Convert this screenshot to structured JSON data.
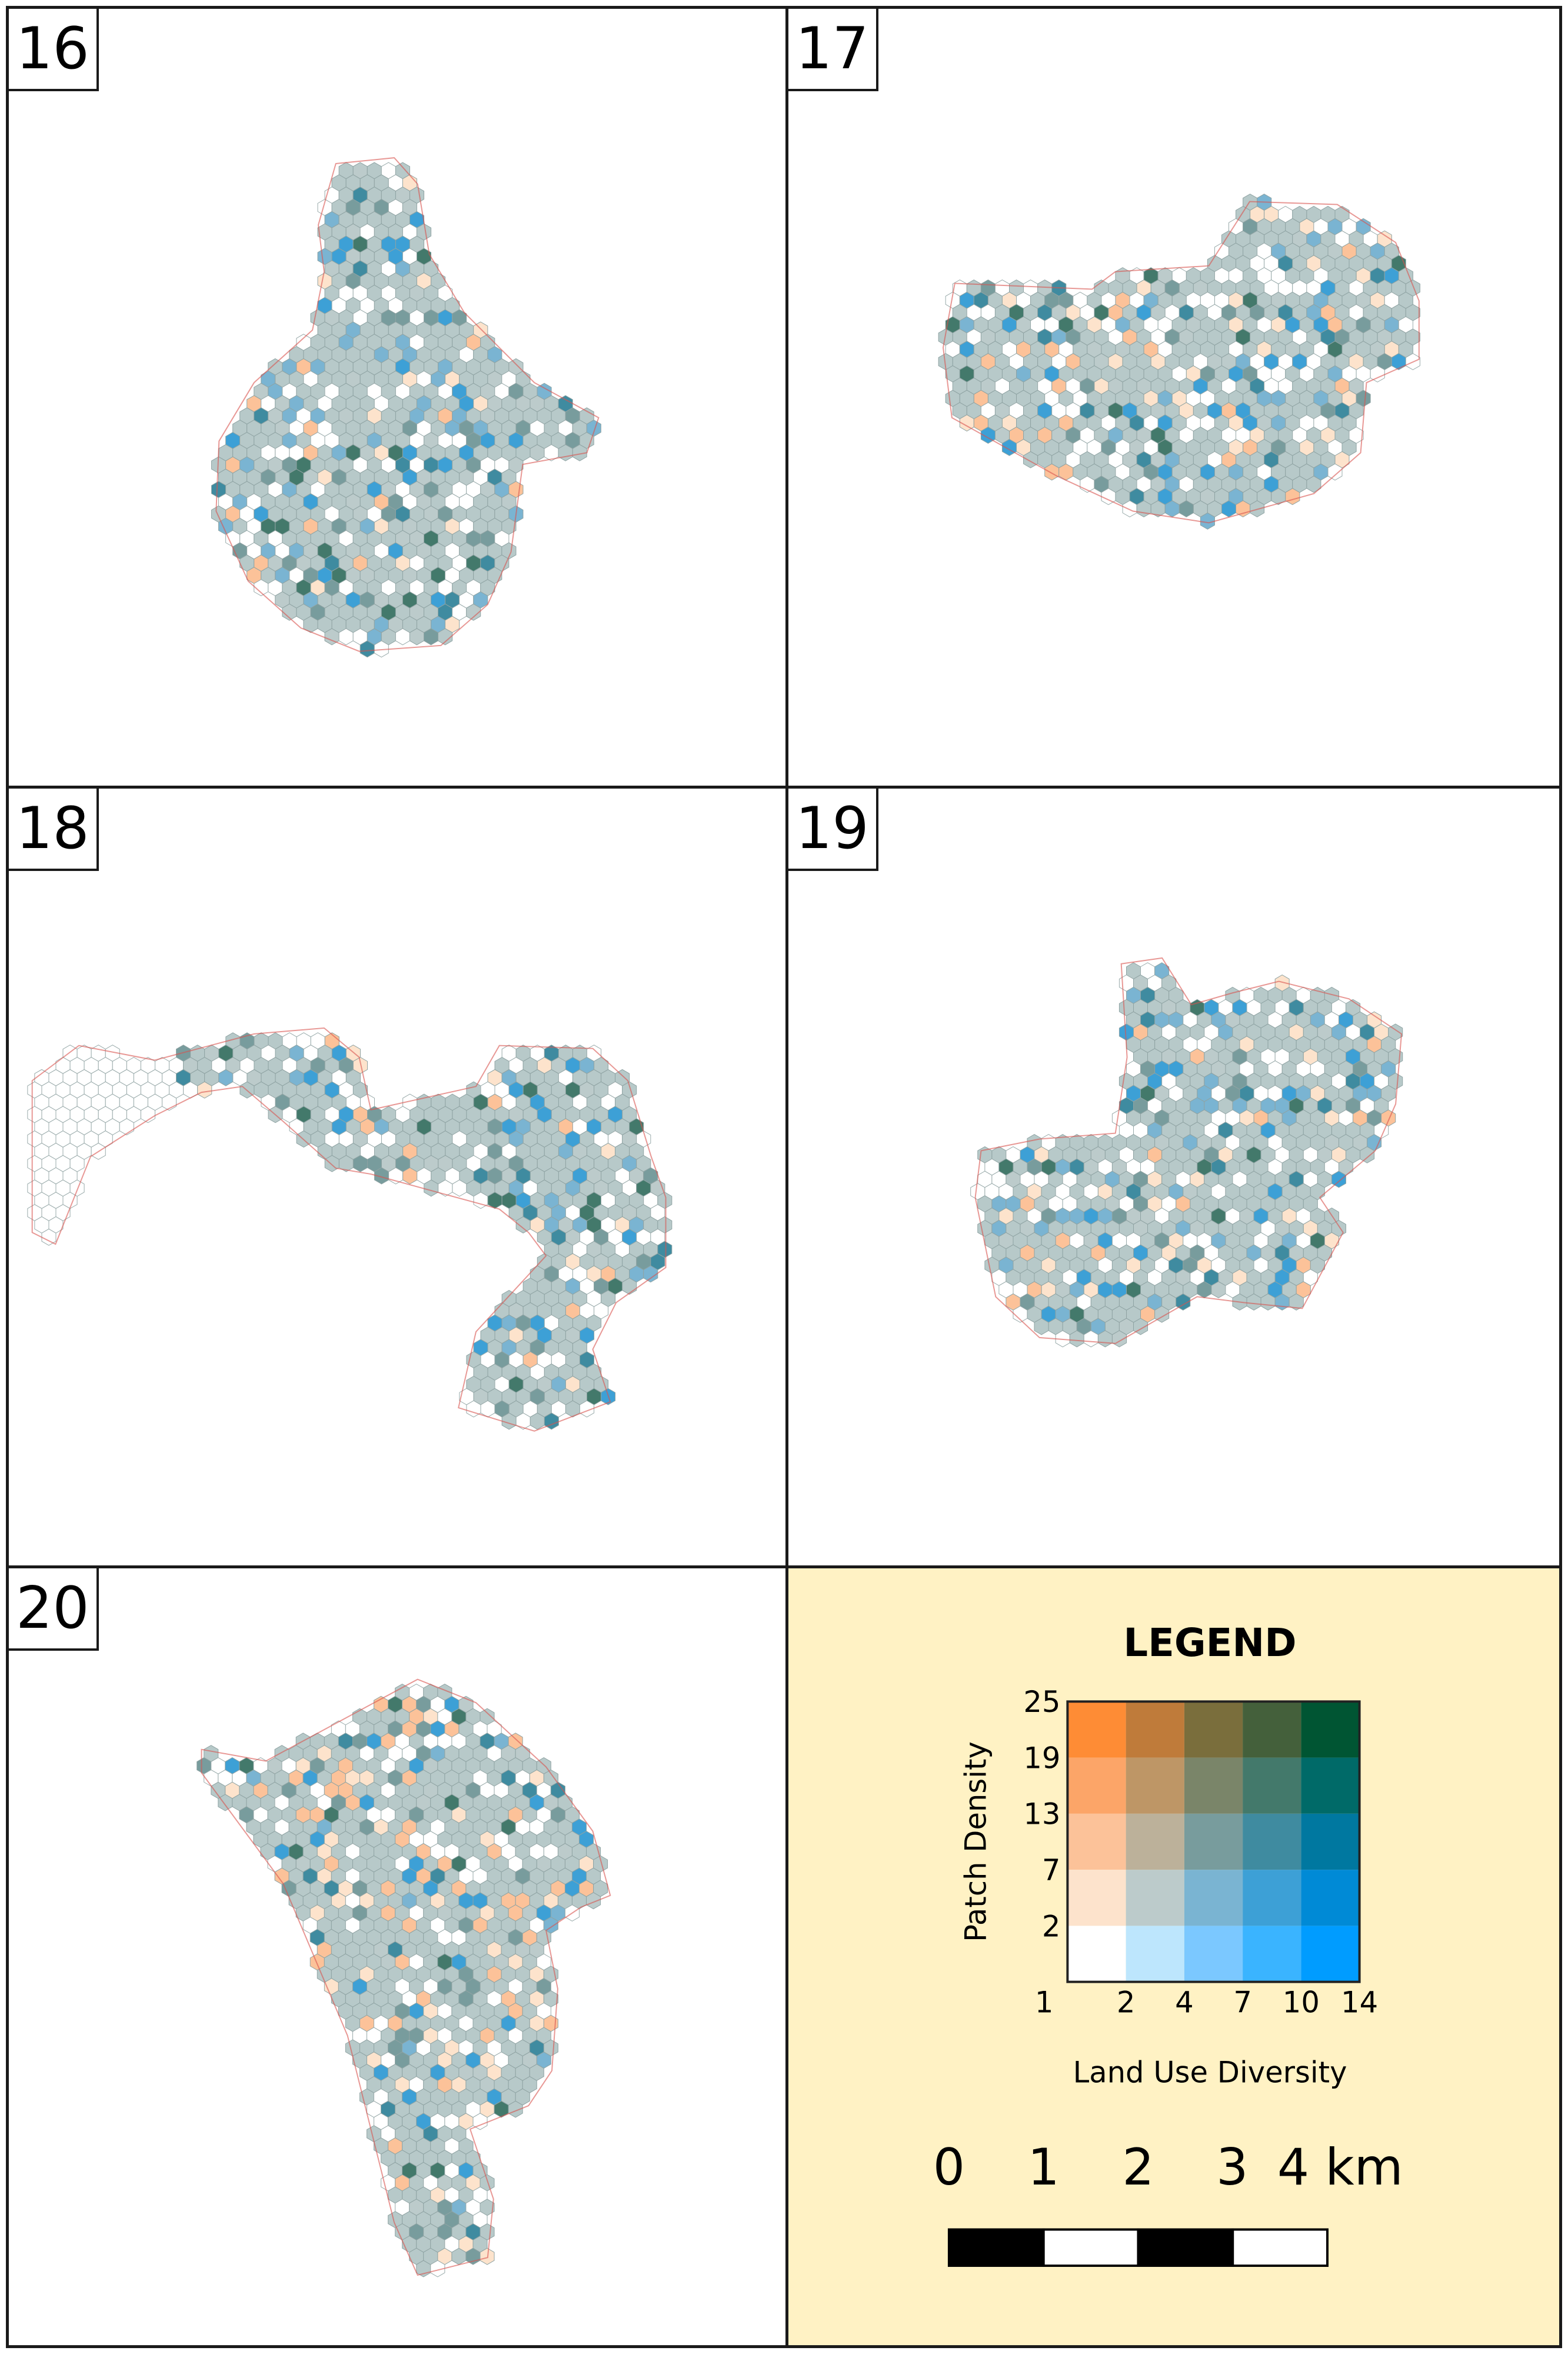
{
  "panels": [
    {
      "label": "16"
    },
    {
      "label": "17"
    },
    {
      "label": "18"
    },
    {
      "label": "19"
    },
    {
      "label": "20"
    }
  ],
  "legend": {
    "title": "LEGEND",
    "y_axis_label": "Patch Density",
    "x_axis_label": "Land Use Diversity",
    "y_ticks": [
      "25",
      "19",
      "13",
      "7",
      "2"
    ],
    "x_ticks": [
      "1",
      "2",
      "4",
      "7",
      "10",
      "14"
    ],
    "grid_colors_top_to_bottom": [
      [
        "#fe8c35",
        "#bf7b3a",
        "#7a6e3c",
        "#44603b",
        "#005533"
      ],
      [
        "#fca568",
        "#be9666",
        "#7a8569",
        "#43796b",
        "#006a68"
      ],
      [
        "#fcc299",
        "#bcb19a",
        "#789c9d",
        "#3f8ba0",
        "#0078a0"
      ],
      [
        "#fde3cc",
        "#bccbcb",
        "#7ab4d2",
        "#3da0d6",
        "#008ad6"
      ],
      [
        "#ffffff",
        "#bde6fd",
        "#7bc8ff",
        "#3ab4ff",
        "#009cff"
      ]
    ]
  },
  "scale_bar": {
    "labels": [
      "0",
      "1",
      "2",
      "3",
      "4 km"
    ],
    "segments": [
      "black",
      "white",
      "black",
      "white"
    ]
  },
  "colors": {
    "hex_fill_common": "#b7c9c9",
    "hex_outline": "#8fa3a3",
    "boundary_line": "#d9534f",
    "legend_background": "#fff2c4",
    "frame": "#1a1a1a"
  }
}
